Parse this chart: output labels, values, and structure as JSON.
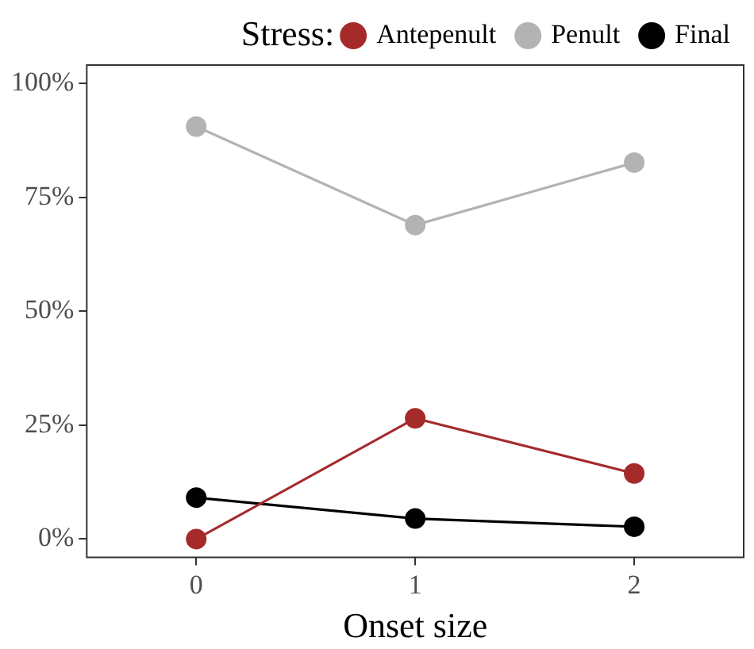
{
  "chart_data": {
    "type": "line",
    "xlabel": "Onset size",
    "legend_title": "Stress:",
    "legend": "top right",
    "marker": "circle",
    "grid": false,
    "categories": [
      "0",
      "1",
      "2"
    ],
    "series": [
      {
        "name": "Antepenult",
        "color": "#a52a2a",
        "values": [
          0,
          26.5,
          14.4
        ]
      },
      {
        "name": "Penult",
        "color": "#b3b3b3",
        "values": [
          90.5,
          68.9,
          82.6
        ]
      },
      {
        "name": "Final",
        "color": "#000000",
        "values": [
          9.1,
          4.5,
          2.7
        ]
      }
    ],
    "ylim": [
      -4,
      104
    ],
    "yticks": [
      {
        "value": 0,
        "label": "0%"
      },
      {
        "value": 25,
        "label": "25%"
      },
      {
        "value": 50,
        "label": "50%"
      },
      {
        "value": 75,
        "label": "75%"
      },
      {
        "value": 100,
        "label": "100%"
      }
    ]
  }
}
